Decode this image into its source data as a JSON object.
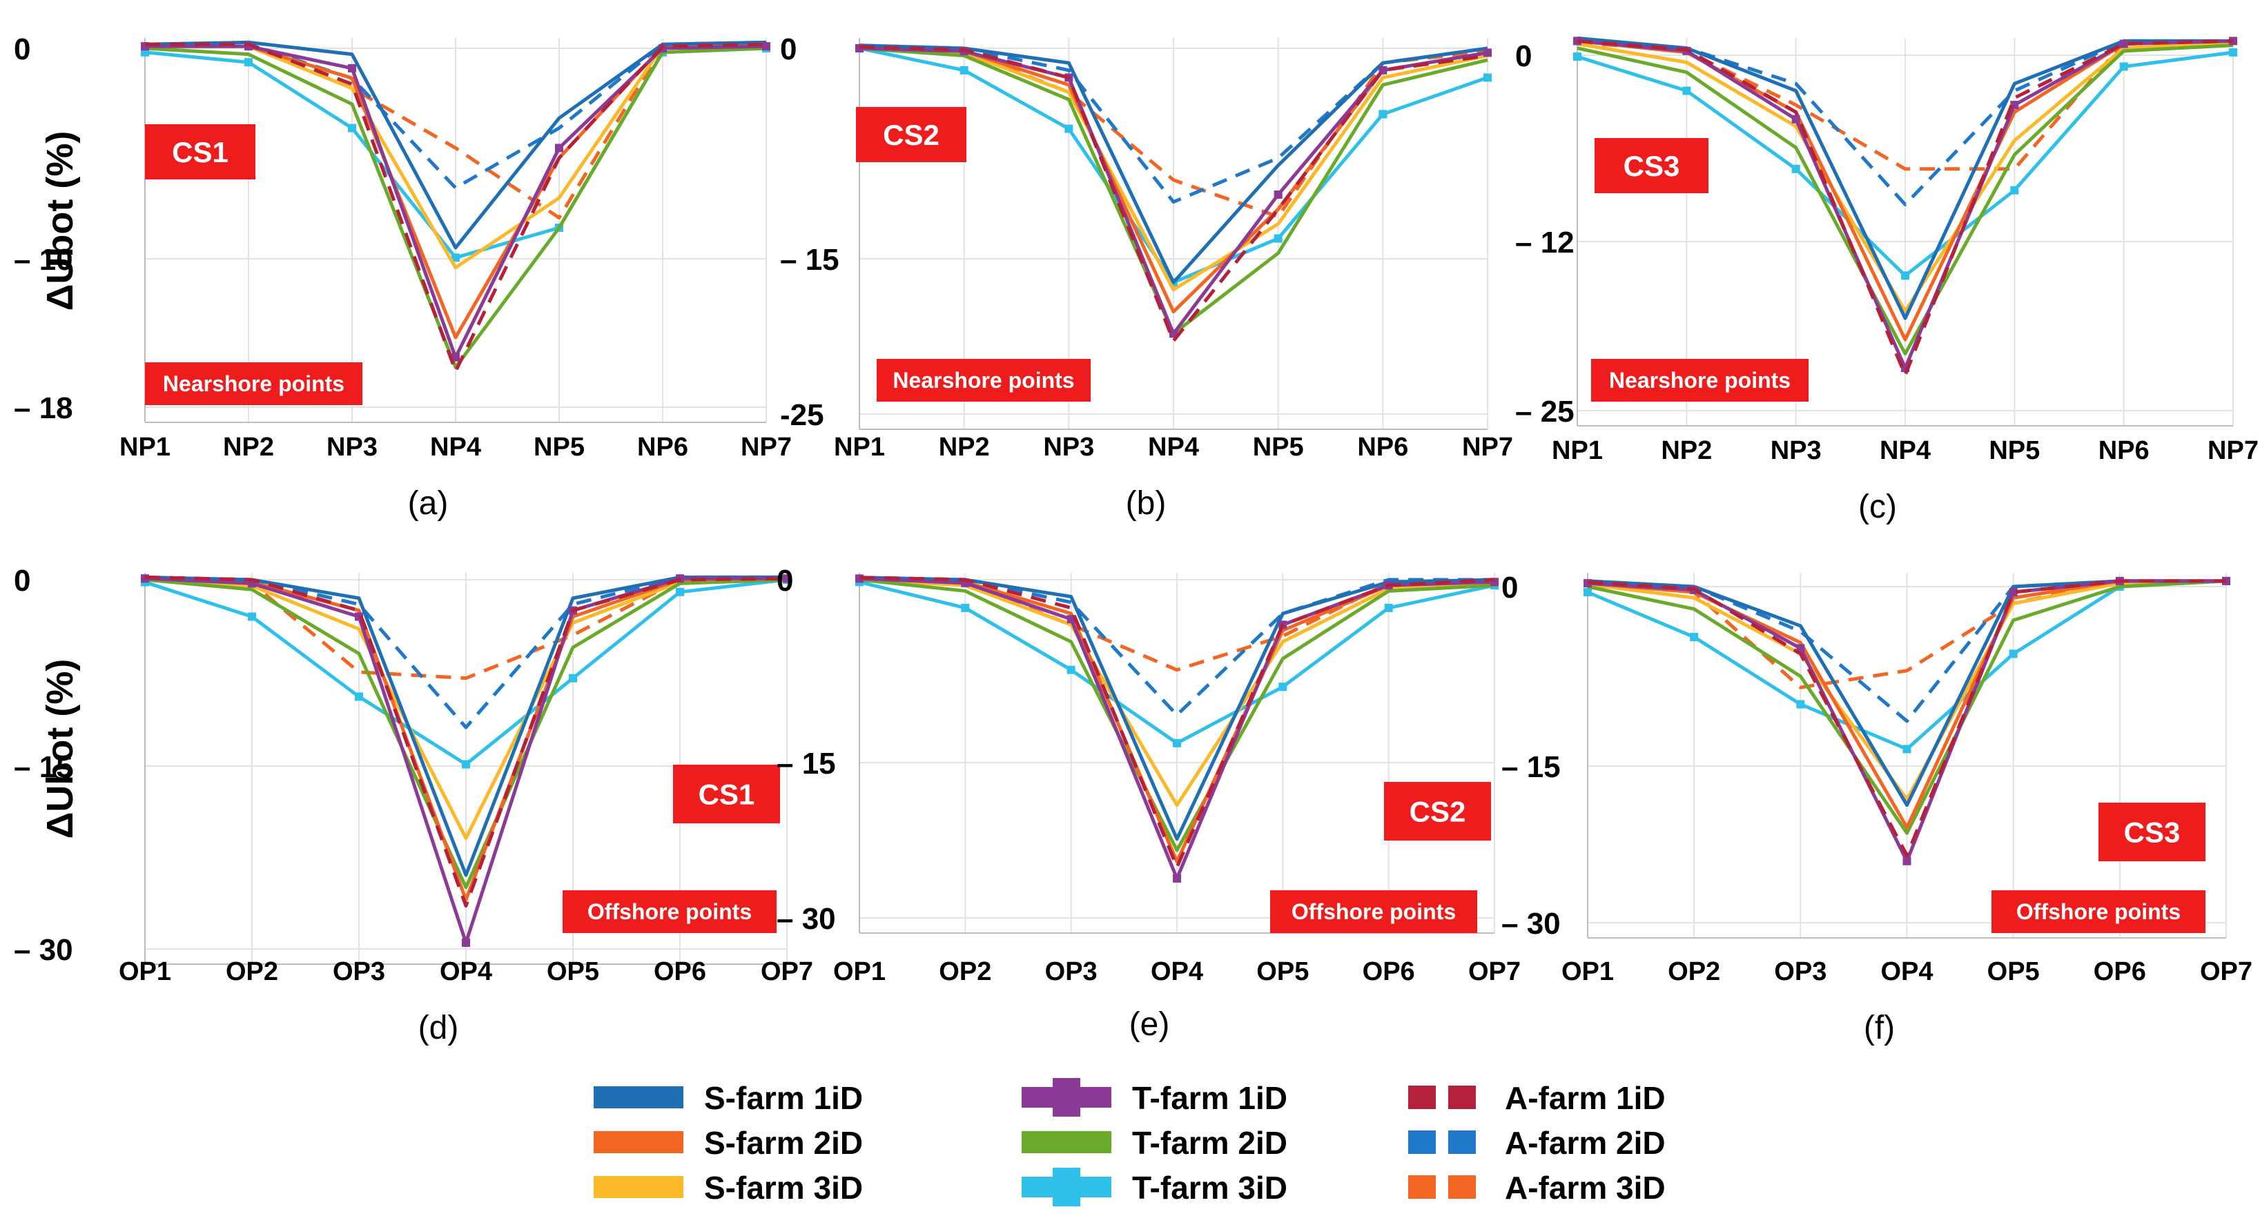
{
  "y_axis_label": "ΔUbot (%)",
  "legend": {
    "title": "",
    "entries": [
      {
        "name": "S-farm 1iD",
        "color": "#1f6fb5",
        "style": "solid"
      },
      {
        "name": "S-farm 2iD",
        "color": "#f26522",
        "style": "solid"
      },
      {
        "name": "S-farm 3iD",
        "color": "#fbb829",
        "style": "solid"
      },
      {
        "name": "T-farm 1iD",
        "color": "#8b3a96",
        "style": "marker"
      },
      {
        "name": "T-farm 2iD",
        "color": "#6aaa2a",
        "style": "solid"
      },
      {
        "name": "T-farm 3iD",
        "color": "#2ec0e8",
        "style": "marker"
      },
      {
        "name": "A-farm 1iD",
        "color": "#b5203a",
        "style": "dashed"
      },
      {
        "name": "A-farm 2iD",
        "color": "#1f78c8",
        "style": "dashed"
      },
      {
        "name": "A-farm 3iD",
        "color": "#f26522",
        "style": "dashed"
      }
    ]
  },
  "chart_data": [
    {
      "type": "line",
      "panel_label": "(a)",
      "case": "CS1",
      "group_label": "Nearshore points",
      "categories": [
        "NP1",
        "NP2",
        "NP3",
        "NP4",
        "NP5",
        "NP6",
        "NP7"
      ],
      "yticks": [
        "0",
        "– 10",
        "– 18"
      ],
      "ylim": [
        -18,
        0.5
      ],
      "ytick_values": [
        0,
        -10,
        -18
      ],
      "series": [
        {
          "name": "S-farm 1iD",
          "values": [
            0.2,
            0.3,
            -0.3,
            -10,
            -3.5,
            0.2,
            0.3
          ]
        },
        {
          "name": "S-farm 2iD",
          "values": [
            0.1,
            0.1,
            -1.5,
            -14.5,
            -5.5,
            0.1,
            0.2
          ]
        },
        {
          "name": "S-farm 3iD",
          "values": [
            0.1,
            0.1,
            -2,
            -11,
            -7.5,
            0.1,
            0.2
          ]
        },
        {
          "name": "T-farm 1iD",
          "values": [
            0.1,
            0.1,
            -1,
            -15.5,
            -5,
            0,
            0.1
          ]
        },
        {
          "name": "T-farm 2iD",
          "values": [
            0,
            -0.3,
            -2.8,
            -16,
            -9,
            -0.2,
            0
          ]
        },
        {
          "name": "T-farm 3iD",
          "values": [
            -0.2,
            -0.7,
            -4,
            -10.5,
            -9,
            -0.2,
            0
          ]
        },
        {
          "name": "A-farm 1iD",
          "values": [
            0.2,
            0.2,
            -1.8,
            -16.2,
            -5.5,
            0.1,
            0.2
          ]
        },
        {
          "name": "A-farm 2iD",
          "values": [
            0.2,
            0.2,
            -1.5,
            -7,
            -4,
            0.2,
            0.3
          ]
        },
        {
          "name": "A-farm 3iD",
          "values": [
            0.1,
            0.1,
            -2,
            -5,
            -8.5,
            0.1,
            0.2
          ]
        }
      ]
    },
    {
      "type": "line",
      "panel_label": "(b)",
      "case": "CS2",
      "group_label": "Nearshore points",
      "categories": [
        "NP1",
        "NP2",
        "NP3",
        "NP4",
        "NP5",
        "NP6",
        "NP7"
      ],
      "yticks": [
        "0",
        "– 15",
        "-25"
      ],
      "ylim": [
        -25,
        0.5
      ],
      "ytick_values": [
        0,
        -15,
        -25
      ],
      "series": [
        {
          "name": "S-farm 1iD",
          "values": [
            0.2,
            0,
            -1,
            -16,
            -8,
            -1,
            0
          ]
        },
        {
          "name": "S-farm 2iD",
          "values": [
            0.1,
            -0.2,
            -2.5,
            -18,
            -11,
            -1.5,
            -0.3
          ]
        },
        {
          "name": "S-farm 3iD",
          "values": [
            0.1,
            -0.3,
            -3,
            -16.5,
            -12,
            -2,
            -0.5
          ]
        },
        {
          "name": "T-farm 1iD",
          "values": [
            0,
            -0.2,
            -2,
            -19.5,
            -10,
            -1.5,
            -0.3
          ]
        },
        {
          "name": "T-farm 2iD",
          "values": [
            0,
            -0.5,
            -3.5,
            -19.5,
            -14,
            -2.5,
            -0.8
          ]
        },
        {
          "name": "T-farm 3iD",
          "values": [
            0,
            -1.5,
            -5.5,
            -16,
            -13,
            -4.5,
            -2
          ]
        },
        {
          "name": "A-farm 1iD",
          "values": [
            0.1,
            -0.1,
            -2,
            -20,
            -11,
            -1.5,
            -0.5
          ]
        },
        {
          "name": "A-farm 2iD",
          "values": [
            0.2,
            0,
            -1.5,
            -10.5,
            -7.5,
            -1,
            0
          ]
        },
        {
          "name": "A-farm 3iD",
          "values": [
            0.1,
            -0.2,
            -3,
            -9,
            -11.5,
            -1,
            -0.2
          ]
        }
      ]
    },
    {
      "type": "line",
      "panel_label": "(c)",
      "case": "CS3",
      "group_label": "Nearshore points",
      "categories": [
        "NP1",
        "NP2",
        "NP3",
        "NP4",
        "NP5",
        "NP6",
        "NP7"
      ],
      "yticks": [
        "0",
        "– 12",
        "– 25"
      ],
      "ylim": [
        -25,
        1
      ],
      "ytick_values": [
        0,
        -12,
        -25
      ],
      "series": [
        {
          "name": "S-farm 1iD",
          "values": [
            1.2,
            0.5,
            -2.5,
            -18.5,
            -2,
            1,
            1
          ]
        },
        {
          "name": "S-farm 2iD",
          "values": [
            1,
            0.2,
            -4,
            -20,
            -4,
            0.8,
            1
          ]
        },
        {
          "name": "S-farm 3iD",
          "values": [
            0.8,
            -0.5,
            -5,
            -18,
            -6,
            0.5,
            0.9
          ]
        },
        {
          "name": "T-farm 1iD",
          "values": [
            1,
            0.3,
            -4.5,
            -22,
            -3.5,
            0.8,
            1
          ]
        },
        {
          "name": "T-farm 2iD",
          "values": [
            0.5,
            -1.2,
            -6.5,
            -21,
            -7,
            0.3,
            0.7
          ]
        },
        {
          "name": "T-farm 3iD",
          "values": [
            -0.1,
            -2.5,
            -8,
            -15.5,
            -9.5,
            -0.8,
            0.2
          ]
        },
        {
          "name": "A-farm 1iD",
          "values": [
            1,
            0.4,
            -4,
            -22.5,
            -3,
            0.8,
            1
          ]
        },
        {
          "name": "A-farm 2iD",
          "values": [
            1.1,
            0.5,
            -2,
            -10.5,
            -2.5,
            1,
            1
          ]
        },
        {
          "name": "A-farm 3iD",
          "values": [
            0.9,
            0.3,
            -3.5,
            -8,
            -8,
            0.9,
            1
          ]
        }
      ]
    },
    {
      "type": "line",
      "panel_label": "(d)",
      "case": "CS1",
      "group_label": "Offshore points",
      "categories": [
        "OP1",
        "OP2",
        "OP3",
        "OP4",
        "OP5",
        "OP6",
        "OP7"
      ],
      "yticks": [
        "0",
        "– 15",
        "– 30"
      ],
      "ylim": [
        -30,
        0.5
      ],
      "ytick_values": [
        0,
        -15,
        -30
      ],
      "series": [
        {
          "name": "S-farm 1iD",
          "values": [
            0.2,
            0,
            -1.5,
            -24,
            -1.5,
            0.2,
            0.2
          ]
        },
        {
          "name": "S-farm 2iD",
          "values": [
            0.1,
            -0.2,
            -2.5,
            -26,
            -3,
            0,
            0.1
          ]
        },
        {
          "name": "S-farm 3iD",
          "values": [
            0,
            -0.5,
            -4,
            -21,
            -3.5,
            -0.2,
            0
          ]
        },
        {
          "name": "T-farm 1iD",
          "values": [
            0.1,
            -0.3,
            -3,
            -29.5,
            -2.5,
            0.1,
            0.1
          ]
        },
        {
          "name": "T-farm 2iD",
          "values": [
            0,
            -0.8,
            -6,
            -25,
            -5.5,
            -0.3,
            0
          ]
        },
        {
          "name": "T-farm 3iD",
          "values": [
            -0.2,
            -3,
            -9.5,
            -15,
            -8,
            -1,
            0
          ]
        },
        {
          "name": "A-farm 1iD",
          "values": [
            0.2,
            0,
            -2.5,
            -26.5,
            -2.5,
            0,
            0.1
          ]
        },
        {
          "name": "A-farm 2iD",
          "values": [
            0.2,
            0,
            -2,
            -12,
            -2,
            0.2,
            0.2
          ]
        },
        {
          "name": "A-farm 3iD",
          "values": [
            0.1,
            -0.3,
            -7.5,
            -8,
            -4.5,
            0,
            0.1
          ]
        }
      ]
    },
    {
      "type": "line",
      "panel_label": "(e)",
      "case": "CS2",
      "group_label": "Offshore points",
      "categories": [
        "OP1",
        "OP2",
        "OP3",
        "OP4",
        "OP5",
        "OP6",
        "OP7"
      ],
      "yticks": [
        "0",
        "– 15",
        "– 30"
      ],
      "ylim": [
        -30,
        0.5
      ],
      "ytick_values": [
        0,
        -15,
        -30
      ],
      "series": [
        {
          "name": "S-farm 1iD",
          "values": [
            0.2,
            0,
            -1.5,
            -23,
            -3,
            -0.2,
            0
          ]
        },
        {
          "name": "S-farm 2iD",
          "values": [
            0.1,
            -0.2,
            -3,
            -25,
            -4.5,
            -0.5,
            -0.2
          ]
        },
        {
          "name": "S-farm 3iD",
          "values": [
            0,
            -0.5,
            -4,
            -20,
            -5.5,
            -0.8,
            -0.3
          ]
        },
        {
          "name": "T-farm 1iD",
          "values": [
            0.1,
            -0.3,
            -3.5,
            -26.5,
            -4,
            -0.5,
            -0.2
          ]
        },
        {
          "name": "T-farm 2iD",
          "values": [
            0,
            -1,
            -5.5,
            -24,
            -7,
            -1,
            -0.5
          ]
        },
        {
          "name": "T-farm 3iD",
          "values": [
            -0.2,
            -2.5,
            -8,
            -14.5,
            -9.5,
            -2.5,
            -0.5
          ]
        },
        {
          "name": "A-farm 1iD",
          "values": [
            0.2,
            0,
            -2.5,
            -25.5,
            -4,
            -0.5,
            0
          ]
        },
        {
          "name": "A-farm 2iD",
          "values": [
            0.2,
            0,
            -2,
            -12,
            -3,
            0,
            0
          ]
        },
        {
          "name": "A-farm 3iD",
          "values": [
            0.1,
            -0.3,
            -4,
            -8,
            -5,
            -0.3,
            0
          ]
        }
      ]
    },
    {
      "type": "line",
      "panel_label": "(f)",
      "case": "CS3",
      "group_label": "Offshore points",
      "categories": [
        "OP1",
        "OP2",
        "OP3",
        "OP4",
        "OP5",
        "OP6",
        "OP7"
      ],
      "yticks": [
        "0",
        "– 15",
        "– 30"
      ],
      "ylim": [
        -30,
        1
      ],
      "ytick_values": [
        0,
        -15,
        -30
      ],
      "series": [
        {
          "name": "S-farm 1iD",
          "values": [
            0.5,
            0,
            -3.5,
            -19.5,
            0,
            0.5,
            0.5
          ]
        },
        {
          "name": "S-farm 2iD",
          "values": [
            0.3,
            -0.5,
            -5,
            -21.5,
            -1,
            0.5,
            0.5
          ]
        },
        {
          "name": "S-farm 3iD",
          "values": [
            0.2,
            -1,
            -6,
            -19,
            -1.5,
            0.3,
            0.5
          ]
        },
        {
          "name": "T-farm 1iD",
          "values": [
            0.3,
            -0.3,
            -5.5,
            -24.5,
            -0.5,
            0.5,
            0.5
          ]
        },
        {
          "name": "T-farm 2iD",
          "values": [
            0,
            -2,
            -8,
            -22,
            -3,
            0,
            0.5
          ]
        },
        {
          "name": "T-farm 3iD",
          "values": [
            -0.5,
            -4.5,
            -10.5,
            -14.5,
            -6,
            0,
            0.5
          ]
        },
        {
          "name": "A-farm 1iD",
          "values": [
            0.4,
            -0.2,
            -6,
            -24,
            -0.5,
            0.5,
            0.5
          ]
        },
        {
          "name": "A-farm 2iD",
          "values": [
            0.5,
            0,
            -4,
            -12,
            0,
            0.5,
            0.5
          ]
        },
        {
          "name": "A-farm 3iD",
          "values": [
            0.3,
            -0.5,
            -9,
            -7.5,
            -1.5,
            0.5,
            0.5
          ]
        }
      ]
    }
  ]
}
